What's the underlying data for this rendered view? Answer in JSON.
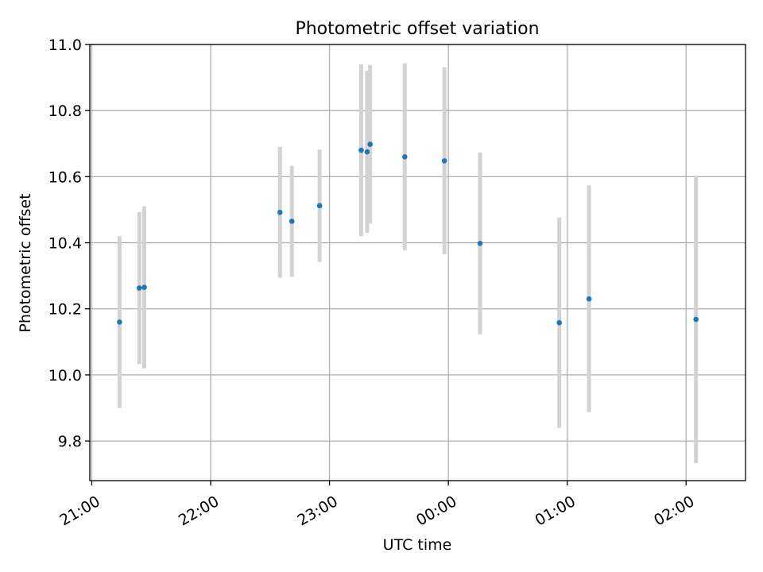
{
  "chart_data": {
    "type": "scatter",
    "title": "Photometric offset variation",
    "xlabel": "UTC time",
    "ylabel": "Photometric offset",
    "x_unit": "minutes after 21:00 UTC",
    "xlim": [
      -1,
      330
    ],
    "ylim": [
      9.68,
      11.0
    ],
    "grid": true,
    "x_ticks": [
      {
        "value": 0,
        "label": "21:00"
      },
      {
        "value": 60,
        "label": "22:00"
      },
      {
        "value": 120,
        "label": "23:00"
      },
      {
        "value": 180,
        "label": "00:00"
      },
      {
        "value": 240,
        "label": "01:00"
      },
      {
        "value": 300,
        "label": "02:00"
      }
    ],
    "y_ticks": [
      {
        "value": 9.8,
        "label": "9.8"
      },
      {
        "value": 10.0,
        "label": "10.0"
      },
      {
        "value": 10.2,
        "label": "10.2"
      },
      {
        "value": 10.4,
        "label": "10.4"
      },
      {
        "value": 10.6,
        "label": "10.6"
      },
      {
        "value": 10.8,
        "label": "10.8"
      },
      {
        "value": 11.0,
        "label": "11.0"
      }
    ],
    "colors": {
      "points": "#1f77b4",
      "errorbars": "#d3d3d3",
      "grid": "#b0b0b0"
    },
    "points": [
      {
        "x": 14,
        "y": 10.16,
        "yerr": 0.26
      },
      {
        "x": 24,
        "y": 10.263,
        "yerr": 0.23
      },
      {
        "x": 26.5,
        "y": 10.265,
        "yerr": 0.245
      },
      {
        "x": 95,
        "y": 10.492,
        "yerr": 0.198
      },
      {
        "x": 101,
        "y": 10.465,
        "yerr": 0.168
      },
      {
        "x": 115,
        "y": 10.512,
        "yerr": 0.17
      },
      {
        "x": 136,
        "y": 10.68,
        "yerr": 0.26
      },
      {
        "x": 139,
        "y": 10.675,
        "yerr": 0.245
      },
      {
        "x": 140.5,
        "y": 10.698,
        "yerr": 0.24
      },
      {
        "x": 158,
        "y": 10.66,
        "yerr": 0.283
      },
      {
        "x": 178,
        "y": 10.648,
        "yerr": 0.283
      },
      {
        "x": 196,
        "y": 10.398,
        "yerr": 0.275
      },
      {
        "x": 236,
        "y": 10.158,
        "yerr": 0.318
      },
      {
        "x": 251,
        "y": 10.23,
        "yerr": 0.343
      },
      {
        "x": 305,
        "y": 10.168,
        "yerr": 0.435
      }
    ]
  }
}
